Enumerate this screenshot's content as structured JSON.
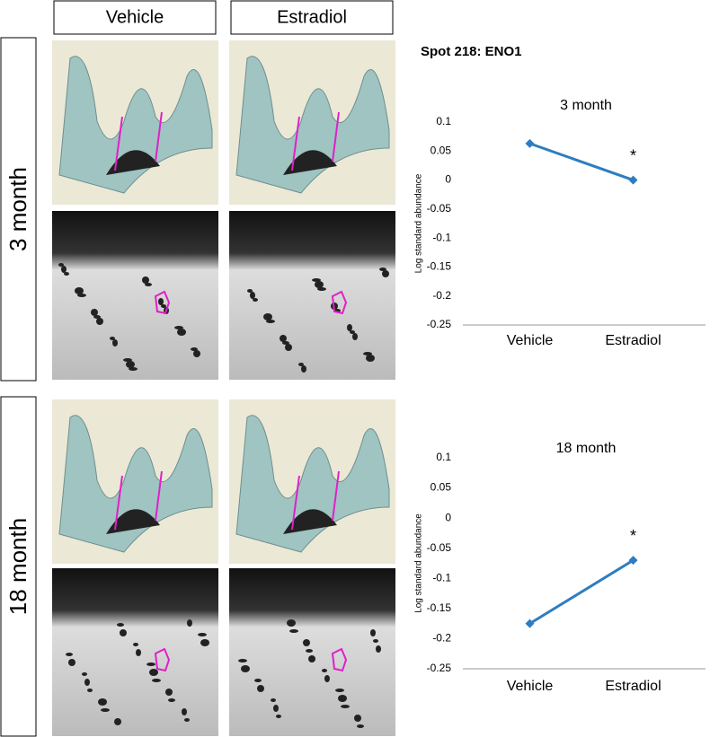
{
  "figure": {
    "columns": [
      "Vehicle",
      "Estradiol"
    ],
    "rows": [
      "3 month",
      "18 month"
    ],
    "title": "Spot 218: ENO1"
  },
  "chart_data": [
    {
      "type": "line",
      "title": "3 month",
      "ylabel": "Log standard abundance",
      "categories": [
        "Vehicle",
        "Estradiol"
      ],
      "values": [
        0.063,
        0
      ],
      "color": "#2e7dc0",
      "ylim": [
        -0.25,
        0.1
      ],
      "yticks": [
        0.1,
        0.05,
        0,
        -0.05,
        -0.1,
        -0.15,
        -0.2,
        -0.25
      ],
      "annotations": [
        {
          "text": "*",
          "x": "Estradiol"
        }
      ]
    },
    {
      "type": "line",
      "title": "18 month",
      "ylabel": "Log standard abundance",
      "categories": [
        "Vehicle",
        "Estradiol"
      ],
      "values": [
        -0.175,
        -0.07
      ],
      "color": "#2e7dc0",
      "ylim": [
        -0.25,
        0.1
      ],
      "yticks": [
        0.1,
        0.05,
        0,
        -0.05,
        -0.1,
        -0.15,
        -0.2,
        -0.25
      ],
      "annotations": [
        {
          "text": "*",
          "x": "Estradiol"
        }
      ]
    }
  ]
}
